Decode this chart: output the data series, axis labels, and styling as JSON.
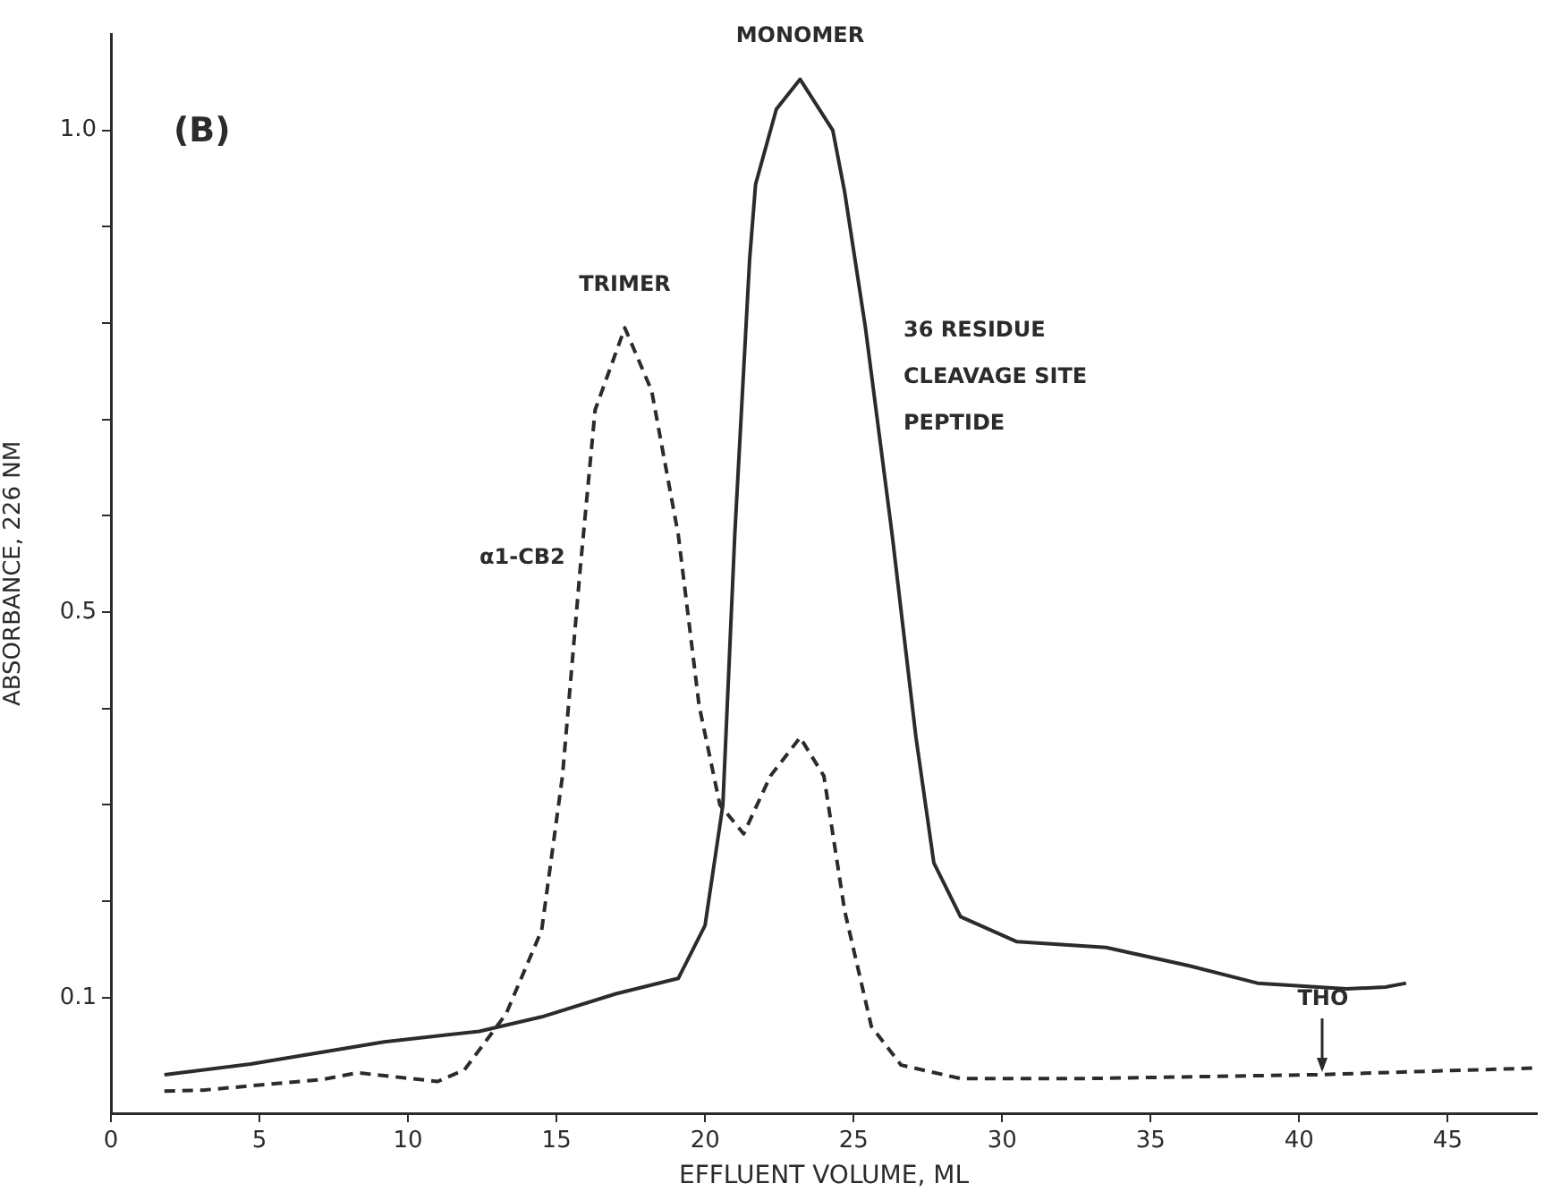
{
  "chart_data": {
    "type": "line",
    "xlabel": "EFFLUENT VOLUME, ML",
    "ylabel": "ABSORBANCE, 226 NM",
    "xlim": [
      0,
      48
    ],
    "xticks": [
      0,
      5,
      10,
      15,
      20,
      25,
      30,
      35,
      40,
      45
    ],
    "ylim": [
      -0.02,
      1.1
    ],
    "yticks": [
      {
        "value": 0.1,
        "label": "0.1"
      },
      {
        "value": 0.2,
        "label": null
      },
      {
        "value": 0.3,
        "label": null
      },
      {
        "value": 0.4,
        "label": null
      },
      0.5,
      {
        "value": 0.6,
        "label": null
      },
      {
        "value": 0.7,
        "label": null
      },
      {
        "value": 0.8,
        "label": null
      },
      {
        "value": 0.9,
        "label": null
      },
      {
        "value": 1.0,
        "label": "1.0"
      }
    ],
    "grid": false,
    "legend": false,
    "marker": "none",
    "series": [
      {
        "name": "36 RESIDUE CLEAVAGE SITE PEPTIDE",
        "color": "#2b2b2b",
        "line_style": "solid",
        "x": [
          1.8,
          4.7,
          9.2,
          12.4,
          14.5,
          17.0,
          19.1,
          20.0,
          20.6,
          21.0,
          21.5,
          21.7,
          22.4,
          23.2,
          24.3,
          24.7,
          25.4,
          26.3,
          27.1,
          27.7,
          28.6,
          30.5,
          33.5,
          36.3,
          38.6,
          41.6,
          42.9,
          43.6
        ],
        "values": [
          0.02,
          0.031,
          0.054,
          0.065,
          0.08,
          0.104,
          0.12,
          0.175,
          0.3,
          0.58,
          0.866,
          0.944,
          1.022,
          1.053,
          1.0,
          0.936,
          0.795,
          0.58,
          0.37,
          0.24,
          0.184,
          0.158,
          0.152,
          0.133,
          0.115,
          0.109,
          0.111,
          0.115
        ]
      },
      {
        "name": "α1-CB2",
        "color": "#2b2b2b",
        "line_style": "dashed",
        "x": [
          1.8,
          3.1,
          7.1,
          8.3,
          11.0,
          11.9,
          13.3,
          14.5,
          15.2,
          15.8,
          16.3,
          17.3,
          18.2,
          19.1,
          19.8,
          20.5,
          21.3,
          22.2,
          23.2,
          24.0,
          24.7,
          25.6,
          26.6,
          28.6,
          32.8,
          40.6,
          48.0
        ],
        "values": [
          0.003,
          0.004,
          0.015,
          0.022,
          0.013,
          0.025,
          0.083,
          0.17,
          0.33,
          0.546,
          0.71,
          0.795,
          0.73,
          0.58,
          0.403,
          0.3,
          0.27,
          0.33,
          0.37,
          0.33,
          0.19,
          0.07,
          0.03,
          0.016,
          0.016,
          0.02,
          0.027
        ]
      }
    ],
    "annotations": [
      "(B)",
      {
        "text": "MONOMER",
        "x": 23.2,
        "y": 1.053
      },
      {
        "text": "TRIMER",
        "x": 17.3,
        "y": 0.795
      },
      {
        "text": "THO",
        "x": 40.8,
        "y": 0.02
      }
    ]
  }
}
